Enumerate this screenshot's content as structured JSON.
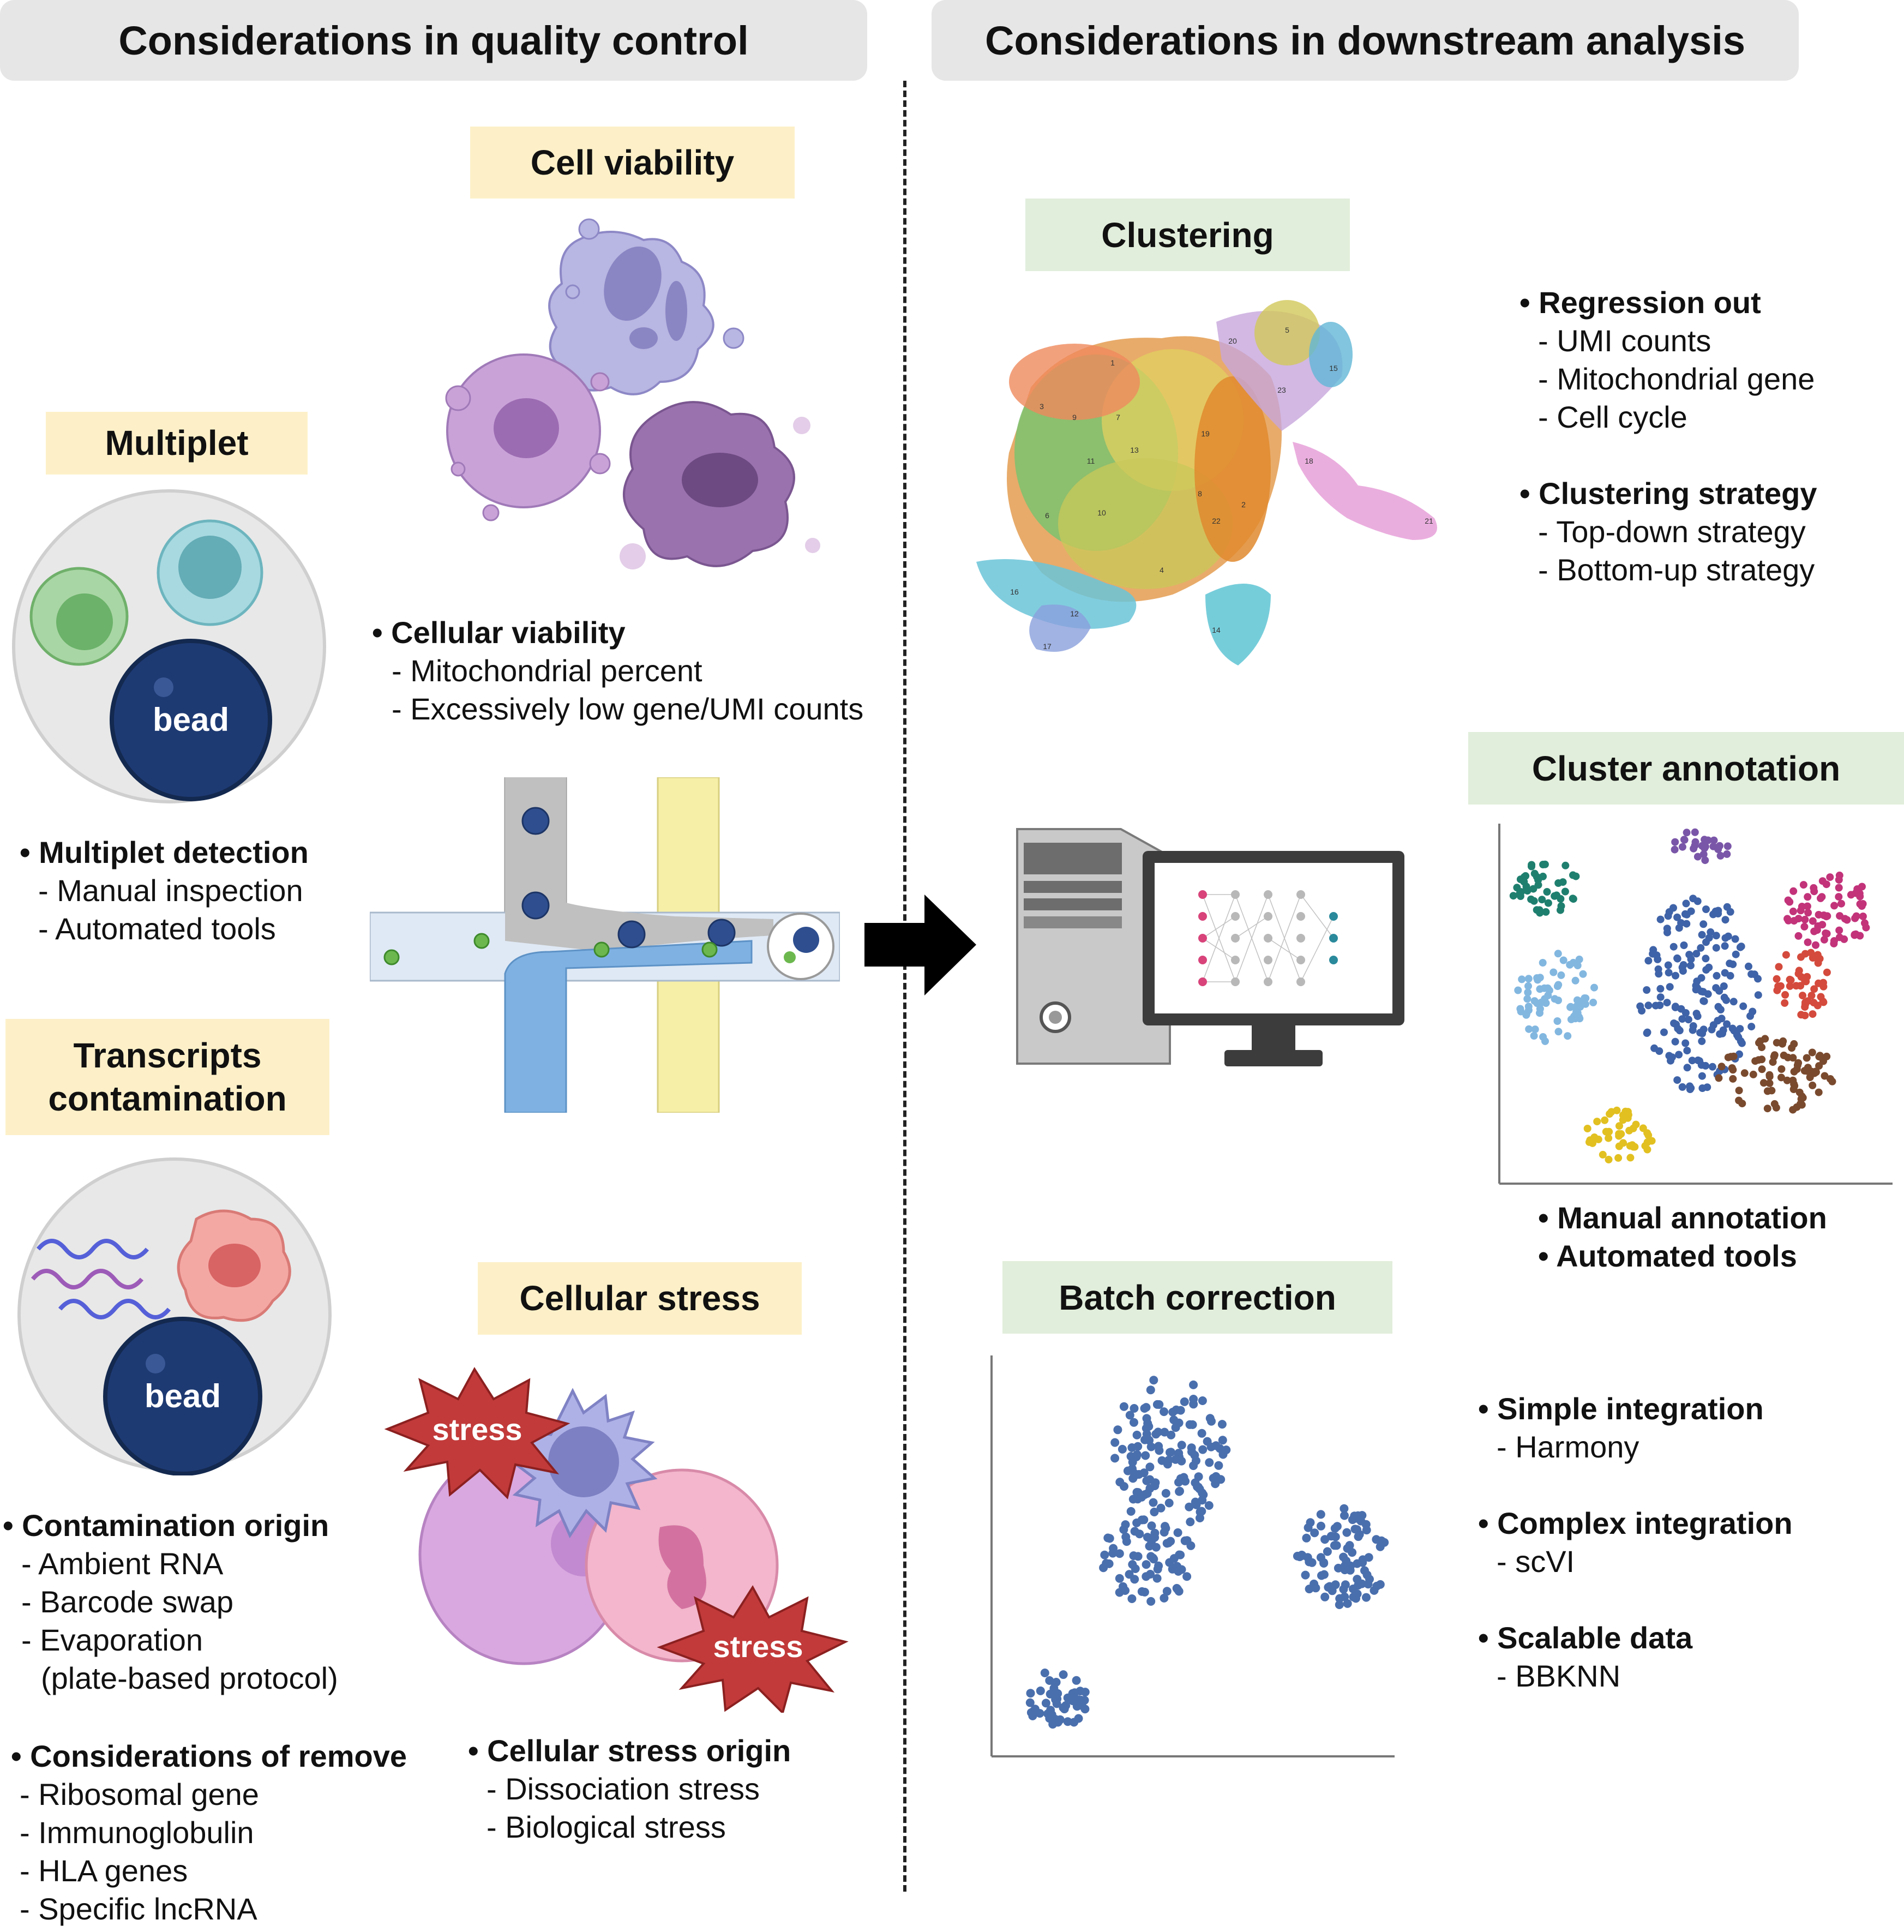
{
  "headers": {
    "left": "Considerations in quality control",
    "right": "Considerations in downstream analysis"
  },
  "labels": {
    "cell_viability": "Cell viability",
    "multiplet": "Multiplet",
    "transcripts_contamination_1": "Transcripts",
    "transcripts_contamination_2": "contamination",
    "cellular_stress": "Cellular stress",
    "clustering": "Clustering",
    "cluster_annotation": "Cluster annotation",
    "batch_correction": "Batch correction"
  },
  "icons": {
    "bead_label": "bead",
    "stress_label": "stress"
  },
  "cell_viability_notes": {
    "title": "• Cellular viability",
    "items": [
      "- Mitochondrial percent",
      "- Excessively low gene/UMI counts"
    ]
  },
  "multiplet_notes": {
    "title": "• Multiplet detection",
    "items": [
      "- Manual inspection",
      "- Automated tools"
    ]
  },
  "contamination_notes": {
    "title": "• Contamination origin",
    "items": [
      "- Ambient RNA",
      "- Barcode swap",
      "- Evaporation",
      "(plate-based protocol)"
    ]
  },
  "remove_notes": {
    "title": "• Considerations of remove",
    "items": [
      "- Ribosomal gene",
      "- Immunoglobulin",
      "- HLA genes",
      "- Specific lncRNA"
    ]
  },
  "stress_notes": {
    "title": "• Cellular stress origin",
    "items": [
      "- Dissociation stress",
      "- Biological stress"
    ]
  },
  "clustering_notes": {
    "regression_title": "• Regression out",
    "regression_items": [
      "- UMI counts",
      "- Mitochondrial gene",
      "- Cell cycle"
    ],
    "strategy_title": "• Clustering strategy",
    "strategy_items": [
      "- Top-down strategy",
      "- Bottom-up strategy"
    ]
  },
  "annotation_notes": {
    "items": [
      "• Manual annotation",
      "• Automated tools"
    ]
  },
  "batch_notes": {
    "simple_title": "• Simple integration",
    "simple_item": "- Harmony",
    "complex_title": "• Complex integration",
    "complex_item": "- scVI",
    "scalable_title": "• Scalable data",
    "scalable_item": "- BBKNN"
  },
  "umap_cluster_ids": [
    "1",
    "2",
    "3",
    "4",
    "5",
    "6",
    "7",
    "8",
    "9",
    "10",
    "11",
    "12",
    "13",
    "14",
    "15",
    "16",
    "17",
    "18",
    "19",
    "20",
    "21",
    "22",
    "23"
  ],
  "colors": {
    "header_bg": "#e6e6e6",
    "qc_label_bg": "#fdf0c8",
    "analysis_label_bg": "#e1eedb",
    "bead": "#1e3a73",
    "stress": "#c23a3a",
    "scatter_blue": "#4a6fad"
  }
}
